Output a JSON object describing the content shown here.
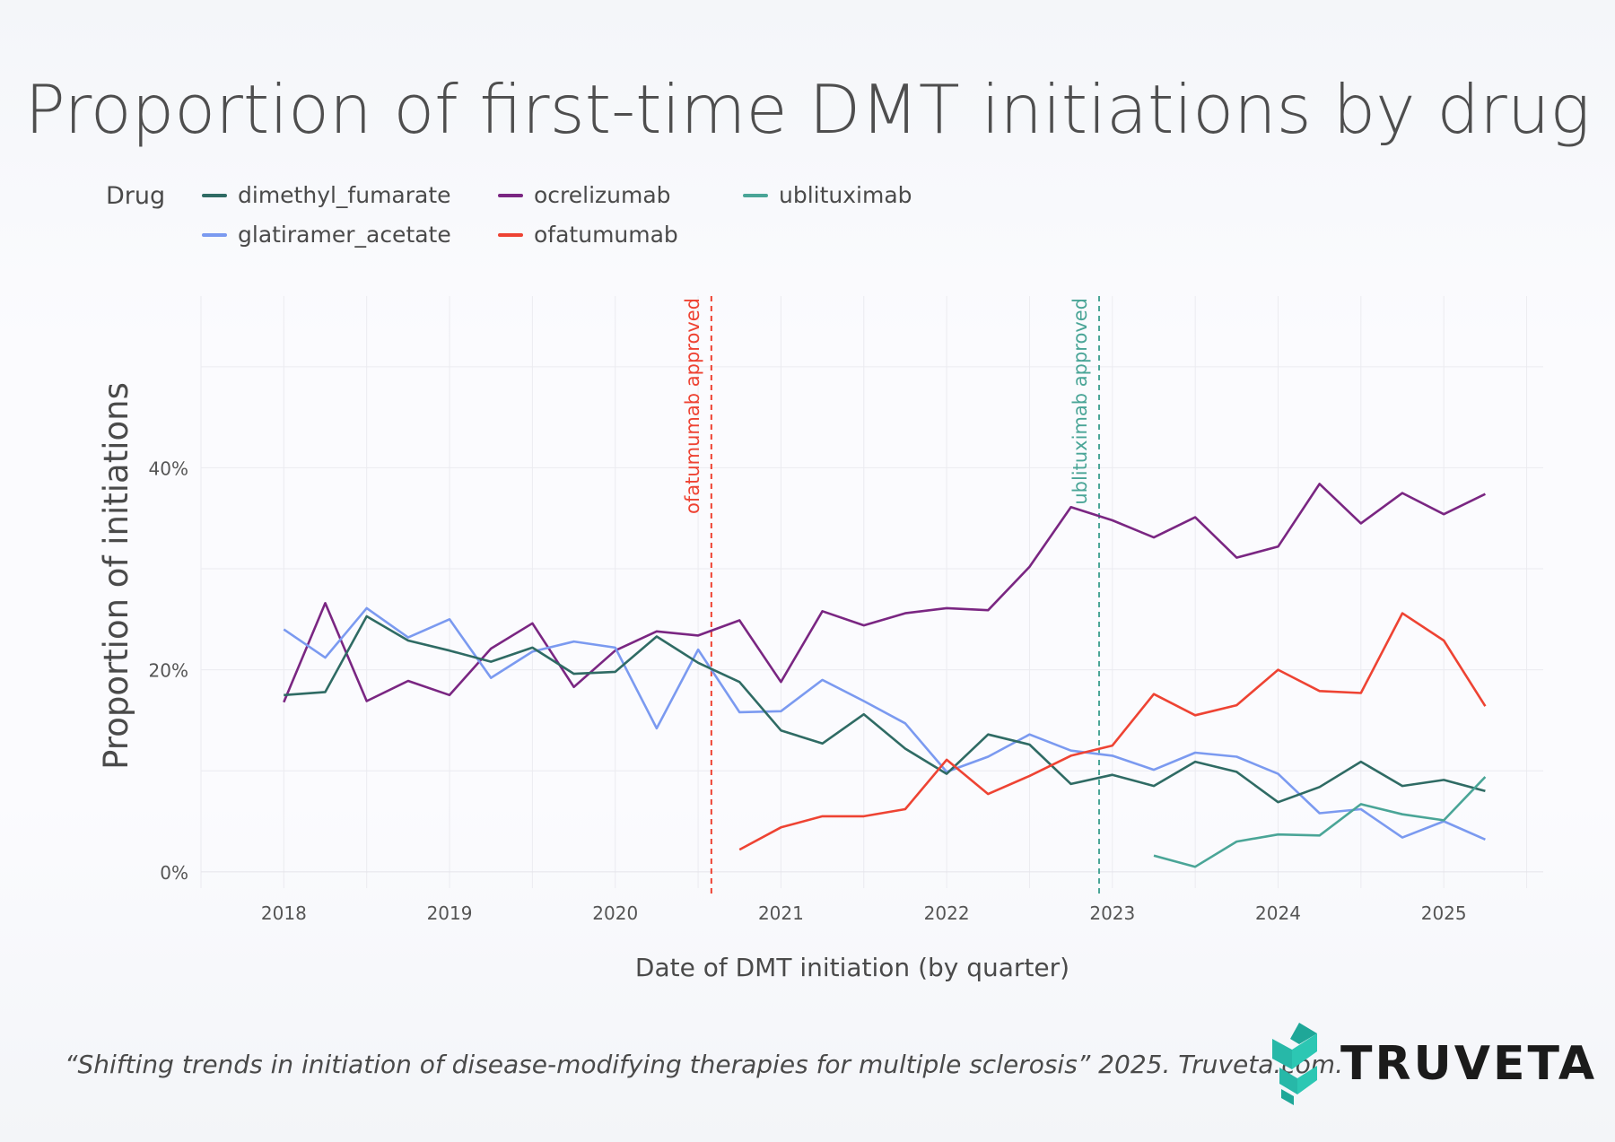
{
  "title": "Proportion of first-time DMT initiations by drug",
  "legend": {
    "title": "Drug",
    "items": [
      {
        "name": "dimethyl_fumarate",
        "color": "#2f6b64"
      },
      {
        "name": "ocrelizumab",
        "color": "#7a2682"
      },
      {
        "name": "ublituximab",
        "color": "#4aa597"
      },
      {
        "name": "glatiramer_acetate",
        "color": "#7b9af0"
      },
      {
        "name": "ofatumumab",
        "color": "#ee4333"
      }
    ]
  },
  "footer": "“Shifting trends in initiation of disease-modifying therapies for multiple sclerosis” 2025. Truveta.com.",
  "logo_text": "TRUVETA",
  "chart_data": {
    "type": "line",
    "title": "Proportion of first-time DMT initiations by drug",
    "xlabel": "Date of DMT initiation (by quarter)",
    "ylabel": "Proportion of initiations",
    "x_ticks": [
      2018,
      2019,
      2020,
      2021,
      2022,
      2023,
      2024,
      2025
    ],
    "y_ticks": [
      0,
      20,
      40
    ],
    "y_tick_labels": [
      "0%",
      "20%",
      "40%"
    ],
    "xlim": [
      2017.5,
      2025.6
    ],
    "ylim": [
      -2.5,
      57
    ],
    "annotations": [
      {
        "x": 2020.58,
        "label": "ofatumumab approved",
        "color": "#ee4333"
      },
      {
        "x": 2022.92,
        "label": "ublituximab approved",
        "color": "#4aa597"
      }
    ],
    "series": [
      {
        "name": "ocrelizumab",
        "color": "#7a2682",
        "x": [
          2018.0,
          2018.25,
          2018.5,
          2018.75,
          2019.0,
          2019.25,
          2019.5,
          2019.75,
          2020.0,
          2020.25,
          2020.5,
          2020.75,
          2021.0,
          2021.25,
          2021.5,
          2021.75,
          2022.0,
          2022.25,
          2022.5,
          2022.75,
          2023.0,
          2023.25,
          2023.5,
          2023.75,
          2024.0,
          2024.25,
          2024.5,
          2024.75,
          2025.0,
          2025.25
        ],
        "y": [
          16.8,
          26.6,
          16.9,
          18.9,
          17.5,
          22.1,
          24.6,
          18.3,
          21.9,
          23.8,
          23.4,
          24.9,
          18.8,
          25.8,
          24.4,
          25.6,
          26.1,
          25.9,
          30.2,
          36.1,
          34.8,
          33.1,
          35.1,
          31.1,
          32.2,
          38.4,
          34.5,
          37.5,
          35.4,
          37.4
        ]
      },
      {
        "name": "glatiramer_acetate",
        "color": "#7b9af0",
        "x": [
          2018.0,
          2018.25,
          2018.5,
          2018.75,
          2019.0,
          2019.25,
          2019.5,
          2019.75,
          2020.0,
          2020.25,
          2020.5,
          2020.75,
          2021.0,
          2021.25,
          2021.5,
          2021.75,
          2022.0,
          2022.25,
          2022.5,
          2022.75,
          2023.0,
          2023.25,
          2023.5,
          2023.75,
          2024.0,
          2024.25,
          2024.5,
          2024.75,
          2025.0,
          2025.25
        ],
        "y": [
          24.0,
          21.2,
          26.1,
          23.2,
          25.0,
          19.2,
          21.8,
          22.8,
          22.2,
          14.2,
          22.0,
          15.8,
          15.9,
          19.0,
          16.9,
          14.7,
          9.9,
          11.4,
          13.6,
          12.0,
          11.5,
          10.1,
          11.8,
          11.4,
          9.7,
          5.8,
          6.2,
          3.4,
          5.0,
          3.2
        ]
      },
      {
        "name": "dimethyl_fumarate",
        "color": "#2f6b64",
        "x": [
          2018.0,
          2018.25,
          2018.5,
          2018.75,
          2019.0,
          2019.25,
          2019.5,
          2019.75,
          2020.0,
          2020.25,
          2020.5,
          2020.75,
          2021.0,
          2021.25,
          2021.5,
          2021.75,
          2022.0,
          2022.25,
          2022.5,
          2022.75,
          2023.0,
          2023.25,
          2023.5,
          2023.75,
          2024.0,
          2024.25,
          2024.5,
          2024.75,
          2025.0,
          2025.25
        ],
        "y": [
          17.5,
          17.8,
          25.3,
          22.9,
          21.9,
          20.8,
          22.2,
          19.6,
          19.8,
          23.3,
          20.7,
          18.8,
          14.0,
          12.7,
          15.6,
          12.2,
          9.7,
          13.6,
          12.6,
          8.7,
          9.6,
          8.5,
          10.9,
          9.9,
          6.9,
          8.4,
          10.9,
          8.5,
          9.1,
          8.0
        ]
      },
      {
        "name": "ofatumumab",
        "color": "#ee4333",
        "x": [
          2020.75,
          2021.0,
          2021.25,
          2021.5,
          2021.75,
          2022.0,
          2022.25,
          2022.5,
          2022.75,
          2023.0,
          2023.25,
          2023.5,
          2023.75,
          2024.0,
          2024.25,
          2024.5,
          2024.75,
          2025.0,
          2025.25
        ],
        "y": [
          2.2,
          4.4,
          5.5,
          5.5,
          6.2,
          11.1,
          7.7,
          9.5,
          11.5,
          12.5,
          17.6,
          15.5,
          16.5,
          20.0,
          17.9,
          17.7,
          25.6,
          22.9,
          16.4
        ]
      },
      {
        "name": "ublituximab",
        "color": "#4aa597",
        "x": [
          2023.25,
          2023.5,
          2023.75,
          2024.0,
          2024.25,
          2024.5,
          2024.75,
          2025.0,
          2025.25
        ],
        "y": [
          1.6,
          0.5,
          3.0,
          3.7,
          3.6,
          6.7,
          5.7,
          5.1,
          9.4
        ]
      }
    ]
  }
}
